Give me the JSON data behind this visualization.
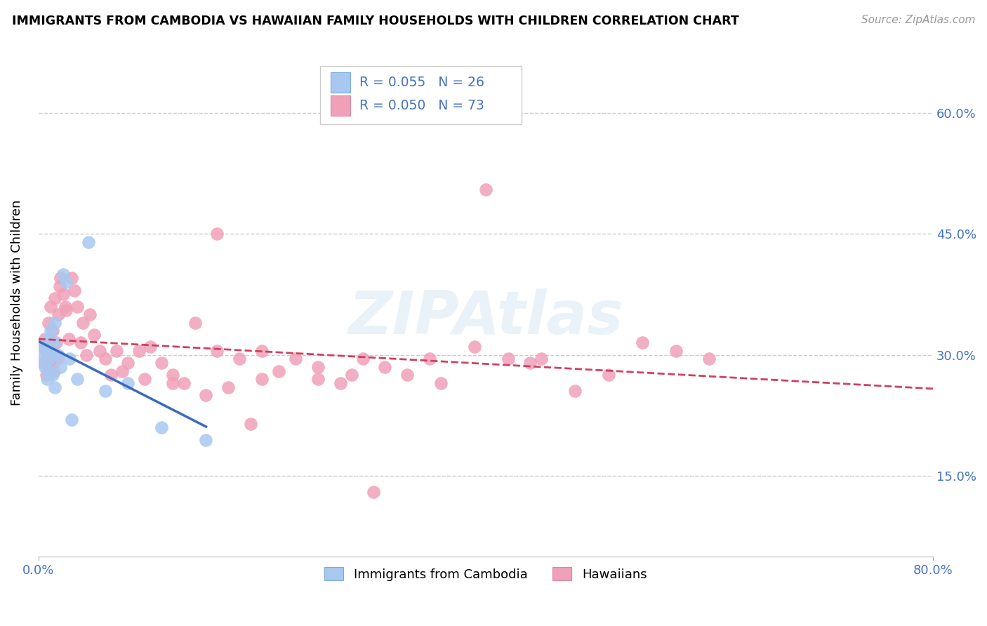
{
  "title": "IMMIGRANTS FROM CAMBODIA VS HAWAIIAN FAMILY HOUSEHOLDS WITH CHILDREN CORRELATION CHART",
  "source": "Source: ZipAtlas.com",
  "ylabel": "Family Households with Children",
  "xlim": [
    0.0,
    0.8
  ],
  "ylim": [
    0.05,
    0.68
  ],
  "ytick_values": [
    0.15,
    0.3,
    0.45,
    0.6
  ],
  "ytick_labels": [
    "15.0%",
    "30.0%",
    "45.0%",
    "60.0%"
  ],
  "xtick_values": [
    0.0,
    0.8
  ],
  "xtick_labels": [
    "0.0%",
    "80.0%"
  ],
  "legend_label1": "Immigrants from Cambodia",
  "legend_label2": "Hawaiians",
  "r1": 0.055,
  "n1": 26,
  "r2": 0.05,
  "n2": 73,
  "color_cambodia": "#a8c8f0",
  "color_hawaii": "#f0a0b8",
  "color_line1": "#3a6abf",
  "color_line2": "#d04060",
  "grid_color": "#cccccc",
  "cambodia_x": [
    0.003,
    0.005,
    0.006,
    0.007,
    0.008,
    0.009,
    0.01,
    0.01,
    0.011,
    0.012,
    0.013,
    0.014,
    0.015,
    0.015,
    0.018,
    0.02,
    0.022,
    0.025,
    0.028,
    0.03,
    0.035,
    0.045,
    0.06,
    0.08,
    0.11,
    0.15
  ],
  "cambodia_y": [
    0.295,
    0.31,
    0.285,
    0.305,
    0.27,
    0.32,
    0.295,
    0.28,
    0.33,
    0.3,
    0.275,
    0.315,
    0.26,
    0.34,
    0.3,
    0.285,
    0.4,
    0.39,
    0.295,
    0.22,
    0.27,
    0.44,
    0.255,
    0.265,
    0.21,
    0.195
  ],
  "hawaii_x": [
    0.003,
    0.005,
    0.006,
    0.007,
    0.008,
    0.009,
    0.01,
    0.011,
    0.012,
    0.013,
    0.014,
    0.015,
    0.016,
    0.017,
    0.018,
    0.019,
    0.02,
    0.022,
    0.024,
    0.025,
    0.027,
    0.03,
    0.032,
    0.035,
    0.038,
    0.04,
    0.043,
    0.046,
    0.05,
    0.055,
    0.06,
    0.065,
    0.07,
    0.075,
    0.08,
    0.09,
    0.095,
    0.1,
    0.11,
    0.12,
    0.13,
    0.14,
    0.15,
    0.16,
    0.17,
    0.18,
    0.19,
    0.2,
    0.215,
    0.23,
    0.25,
    0.27,
    0.29,
    0.31,
    0.33,
    0.36,
    0.39,
    0.42,
    0.45,
    0.48,
    0.51,
    0.54,
    0.57,
    0.6,
    0.4,
    0.3,
    0.25,
    0.2,
    0.16,
    0.12,
    0.35,
    0.28,
    0.44
  ],
  "hawaii_y": [
    0.31,
    0.29,
    0.32,
    0.275,
    0.305,
    0.34,
    0.285,
    0.36,
    0.295,
    0.33,
    0.28,
    0.37,
    0.315,
    0.295,
    0.35,
    0.385,
    0.395,
    0.375,
    0.36,
    0.355,
    0.32,
    0.395,
    0.38,
    0.36,
    0.315,
    0.34,
    0.3,
    0.35,
    0.325,
    0.305,
    0.295,
    0.275,
    0.305,
    0.28,
    0.29,
    0.305,
    0.27,
    0.31,
    0.29,
    0.275,
    0.265,
    0.34,
    0.25,
    0.305,
    0.26,
    0.295,
    0.215,
    0.305,
    0.28,
    0.295,
    0.27,
    0.265,
    0.295,
    0.285,
    0.275,
    0.265,
    0.31,
    0.295,
    0.295,
    0.255,
    0.275,
    0.315,
    0.305,
    0.295,
    0.505,
    0.13,
    0.285,
    0.27,
    0.45,
    0.265,
    0.295,
    0.275,
    0.29
  ]
}
